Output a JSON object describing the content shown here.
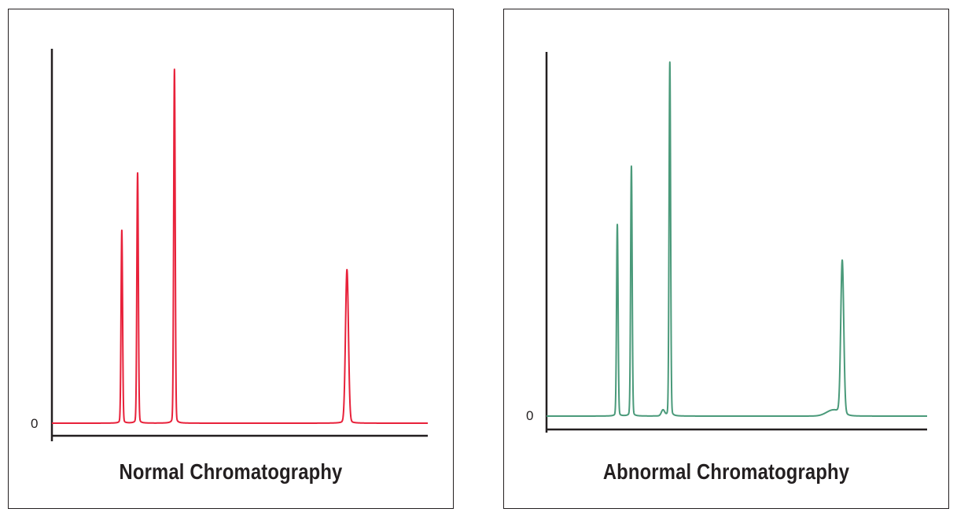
{
  "chart_data": [
    {
      "type": "line",
      "title": "Normal Chromatography",
      "color": "#e8213a",
      "y_tick_labels": [
        "0"
      ],
      "xlim": [
        0,
        100
      ],
      "ylim": [
        0,
        100
      ],
      "peaks": [
        {
          "retention": 18.6,
          "height": 51.5
        },
        {
          "retention": 22.8,
          "height": 66.8
        },
        {
          "retention": 32.6,
          "height": 94.5
        },
        {
          "retention": 78.5,
          "height": 41.0
        }
      ],
      "shoulders": []
    },
    {
      "type": "line",
      "title": "Abnormal Chromatography",
      "color": "#4a9a7a",
      "y_tick_labels": [
        "0"
      ],
      "xlim": [
        0,
        100
      ],
      "ylim": [
        0,
        100
      ],
      "peaks": [
        {
          "retention": 18.6,
          "height": 52.6
        },
        {
          "retention": 22.3,
          "height": 68.6
        },
        {
          "retention": 32.4,
          "height": 97.2
        },
        {
          "retention": 77.7,
          "height": 42.2
        }
      ],
      "shoulders": [
        {
          "retention": 30.6,
          "height": 1.6,
          "width": 0.6
        },
        {
          "retention": 75.3,
          "height": 1.6,
          "width": 2.5
        }
      ]
    }
  ]
}
